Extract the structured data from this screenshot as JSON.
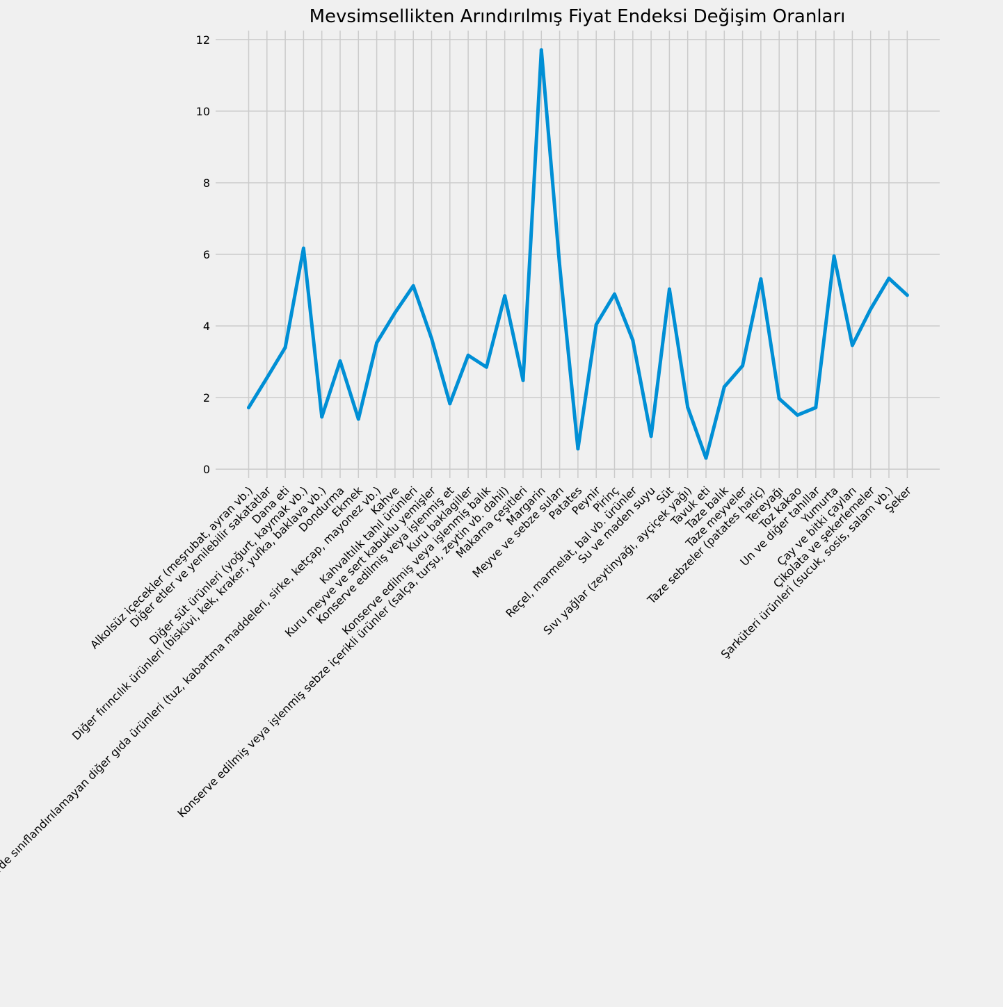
{
  "chart_data": {
    "type": "line",
    "title": "Mevsimsellikten Arındırılmış Fiyat Endeksi Değişim Oranları",
    "xlabel": "",
    "ylabel": "",
    "ylim": [
      -0.25,
      12.25
    ],
    "yticks": [
      0,
      2,
      4,
      6,
      8,
      10,
      12
    ],
    "grid": true,
    "legend": "none",
    "line_color": "#008fd5",
    "categories": [
      "Alkolsüz içecekler (meşrubat, ayran vb.)",
      "Diğer etler ve yenilebilir sakatatlar",
      "Dana eti",
      "Diğer süt ürünleri (yoğurt, kaymak vb.)",
      "Diğer fırıncılık ürünleri (bisküvi, kek, kraker, yufka, baklava vb.)",
      "Dondurma",
      "Ekmek",
      "Başka yerde sınıflandırılamayan diğer gıda ürünleri (tuz, kabartma maddeleri, sirke, ketçap, mayonez vb.)",
      "Kahve",
      "Kahvaltılık tahıl ürünleri",
      "Kuru meyve ve sert kabuklu yemişler",
      "Konserve edilmiş veya işlenmiş et",
      "Kuru baklagiller",
      "Konserve edilmiş veya işlenmiş balık",
      "Konserve edilmiş veya işlenmiş sebze içerikli ürünler (salça, turşu, zeytin vb. dahil)",
      "Makarna çeşitleri",
      "Margarin",
      "Meyve ve sebze suları",
      "Patates",
      "Peynir",
      "Pirinç",
      "Reçel, marmelat, bal vb. ürünler",
      "Su ve maden suyu",
      "Süt",
      "Sıvı yağlar (zeytinyağı, ayçiçek yağı)",
      "Tavuk eti",
      "Taze balık",
      "Taze meyveler",
      "Taze sebzeler (patates hariç)",
      "Tereyağı",
      "Toz kakao",
      "Un ve diğer tahıllar",
      "Yumurta",
      "Çay ve bitki çayları",
      "Çikolata ve şekerlemeler",
      "Şarküteri ürünleri (sucuk, sosis, salam vb.)",
      "Şeker"
    ],
    "values": [
      1.72,
      2.55,
      3.4,
      6.17,
      1.46,
      3.02,
      1.4,
      3.53,
      4.37,
      5.12,
      3.65,
      1.83,
      3.18,
      2.85,
      4.84,
      2.48,
      11.71,
      5.69,
      0.57,
      4.04,
      4.89,
      3.6,
      0.92,
      5.03,
      1.73,
      0.31,
      2.3,
      2.89,
      5.31,
      1.97,
      1.51,
      1.72,
      5.95,
      3.46,
      4.47,
      5.33,
      4.86
    ]
  }
}
